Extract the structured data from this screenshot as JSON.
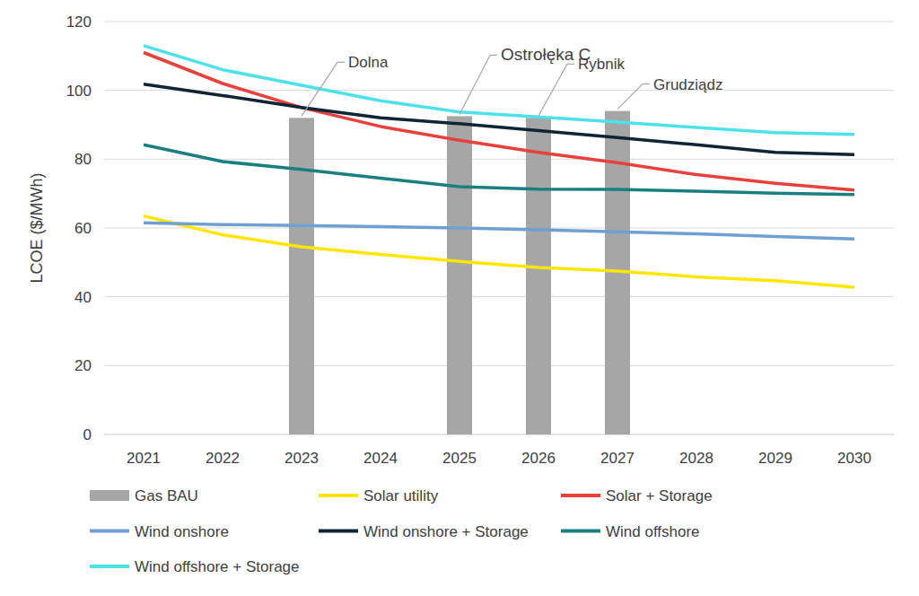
{
  "chart_data": {
    "type": "bar",
    "y_label": "LCOE ($/MWh)",
    "categories": [
      "2021",
      "2022",
      "2023",
      "2024",
      "2025",
      "2026",
      "2027",
      "2028",
      "2029",
      "2030"
    ],
    "ylim": [
      0,
      120
    ],
    "yticks": [
      0,
      20,
      40,
      60,
      80,
      100,
      120
    ],
    "grid": true,
    "legend": "bottom",
    "series": [
      {
        "name": "Gas BAU",
        "type": "bar",
        "color": "#a6a6a6",
        "values": [
          null,
          null,
          92,
          null,
          92.5,
          92,
          94,
          null,
          null,
          null
        ]
      },
      {
        "name": "Solar utility",
        "type": "line",
        "color": "#ffe600",
        "values": [
          63.5,
          58,
          54.5,
          52.3,
          50.3,
          48.5,
          47.5,
          45.8,
          44.7,
          42.8
        ]
      },
      {
        "name": "Solar + Storage",
        "type": "line",
        "color": "#e8403a",
        "values": [
          111,
          102,
          95,
          89.5,
          85.5,
          82,
          79,
          75.5,
          73,
          71
        ]
      },
      {
        "name": "Wind onshore",
        "type": "line",
        "color": "#6f9fd3",
        "values": [
          61.5,
          61,
          60.7,
          60.4,
          60,
          59.5,
          58.9,
          58.3,
          57.5,
          56.8
        ]
      },
      {
        "name": "Wind onshore + Storage",
        "type": "line",
        "color": "#0f2536",
        "values": [
          101.8,
          98.5,
          95,
          92,
          90.3,
          88.3,
          86.3,
          84.2,
          82,
          81.3
        ]
      },
      {
        "name": "Wind offshore",
        "type": "line",
        "color": "#1a7f7f",
        "values": [
          84.2,
          79.3,
          77,
          74.5,
          72,
          71.3,
          71.2,
          70.7,
          70.1,
          69.7
        ]
      },
      {
        "name": "Wind offshore + Storage",
        "type": "line",
        "color": "#4ee1ea",
        "values": [
          113,
          106,
          101.5,
          97,
          93.7,
          92.3,
          90.8,
          89.2,
          87.7,
          87.2
        ]
      }
    ],
    "annotations": [
      {
        "text": "Dolna",
        "category": "2023"
      },
      {
        "text": "Ostrołęka C",
        "category": "2025"
      },
      {
        "text": "Rybnik",
        "category": "2026"
      },
      {
        "text": "Grudziądz",
        "category": "2027"
      }
    ]
  }
}
